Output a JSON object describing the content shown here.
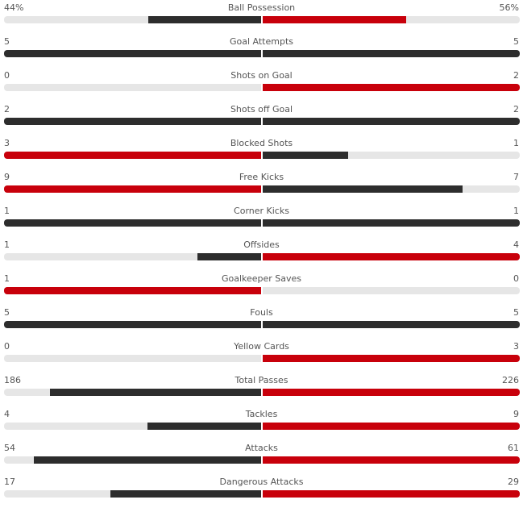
{
  "colors": {
    "lead": "#c8000b",
    "trail": "#2d2d2d",
    "track": "#e6e6e6"
  },
  "stats": [
    {
      "name": "Ball Possession",
      "home": "44%",
      "away": "56%",
      "home_val": 44,
      "away_val": 56,
      "mode": "share"
    },
    {
      "name": "Goal Attempts",
      "home": "5",
      "away": "5",
      "home_val": 5,
      "away_val": 5
    },
    {
      "name": "Shots on Goal",
      "home": "0",
      "away": "2",
      "home_val": 0,
      "away_val": 2
    },
    {
      "name": "Shots off Goal",
      "home": "2",
      "away": "2",
      "home_val": 2,
      "away_val": 2
    },
    {
      "name": "Blocked Shots",
      "home": "3",
      "away": "1",
      "home_val": 3,
      "away_val": 1
    },
    {
      "name": "Free Kicks",
      "home": "9",
      "away": "7",
      "home_val": 9,
      "away_val": 7
    },
    {
      "name": "Corner Kicks",
      "home": "1",
      "away": "1",
      "home_val": 1,
      "away_val": 1
    },
    {
      "name": "Offsides",
      "home": "1",
      "away": "4",
      "home_val": 1,
      "away_val": 4
    },
    {
      "name": "Goalkeeper Saves",
      "home": "1",
      "away": "0",
      "home_val": 1,
      "away_val": 0
    },
    {
      "name": "Fouls",
      "home": "5",
      "away": "5",
      "home_val": 5,
      "away_val": 5
    },
    {
      "name": "Yellow Cards",
      "home": "0",
      "away": "3",
      "home_val": 0,
      "away_val": 3
    },
    {
      "name": "Total Passes",
      "home": "186",
      "away": "226",
      "home_val": 186,
      "away_val": 226
    },
    {
      "name": "Tackles",
      "home": "4",
      "away": "9",
      "home_val": 4,
      "away_val": 9
    },
    {
      "name": "Attacks",
      "home": "54",
      "away": "61",
      "home_val": 54,
      "away_val": 61
    },
    {
      "name": "Dangerous Attacks",
      "home": "17",
      "away": "29",
      "home_val": 17,
      "away_val": 29
    }
  ]
}
